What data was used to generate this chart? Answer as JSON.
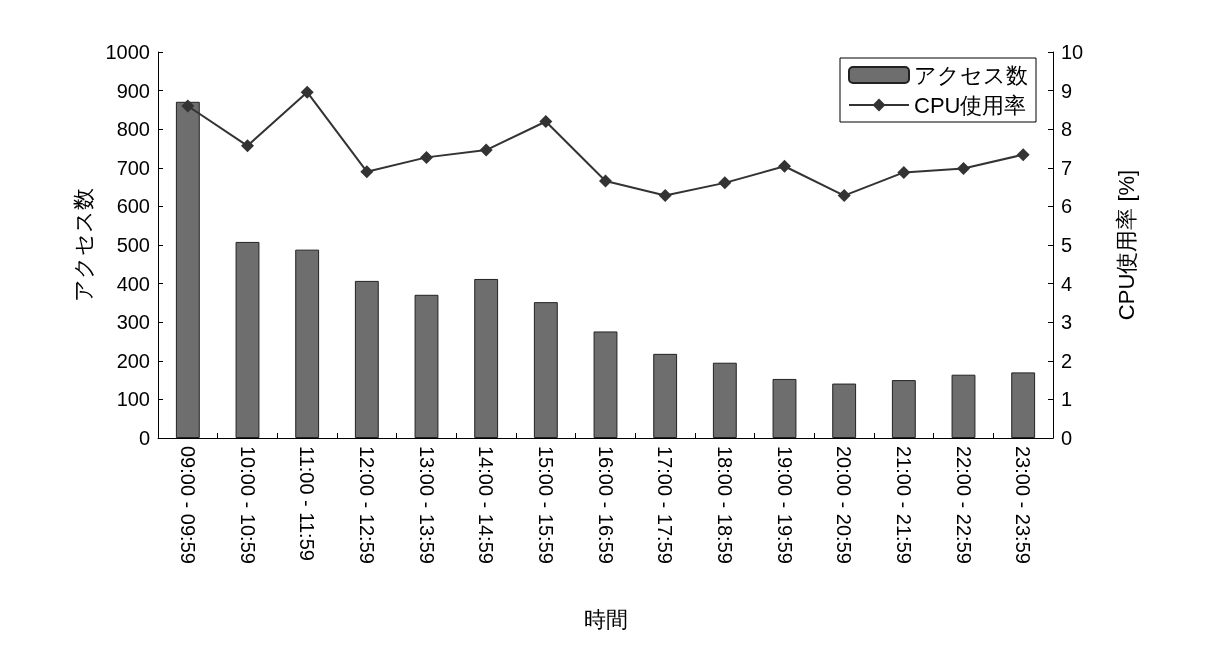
{
  "chart_data": {
    "type": "bar",
    "xlabel": "時間",
    "ylabel": "アクセス数",
    "y2label": "CPU使用率 [%]",
    "categories": [
      "09:00 - 09:59",
      "10:00 - 10:59",
      "11:00 - 11:59",
      "12:00 - 12:59",
      "13:00 - 13:59",
      "14:00 - 14:59",
      "15:00 - 15:59",
      "16:00 - 16:59",
      "17:00 - 17:59",
      "18:00 - 18:59",
      "19:00 - 19:59",
      "20:00 - 20:59",
      "21:00 - 21:59",
      "22:00 - 22:59",
      "23:00 - 23:59"
    ],
    "series": [
      {
        "name": "アクセス数",
        "color": "#6e6e6e",
        "values": [
          871,
          508,
          488,
          407,
          371,
          412,
          352,
          276,
          218,
          195,
          153,
          141,
          150,
          164,
          170
        ]
      },
      {
        "name": "CPU使用率",
        "type": "line",
        "axis": "y2",
        "color": "#333333",
        "marker": "diamond",
        "line_style": "solid",
        "values": [
          8.6,
          7.57,
          8.96,
          6.9,
          7.27,
          7.46,
          8.2,
          6.66,
          6.28,
          6.61,
          7.04,
          6.28,
          6.88,
          6.98,
          7.34
        ]
      }
    ],
    "ylim": [
      0,
      1000
    ],
    "yticks": [
      0,
      100,
      200,
      300,
      400,
      500,
      600,
      700,
      800,
      900,
      1000
    ],
    "y2lim": [
      0,
      10
    ],
    "y2ticks": [
      0,
      1,
      2,
      3,
      4,
      5,
      6,
      7,
      8,
      9,
      10
    ],
    "grid": false,
    "legend": "top right"
  }
}
